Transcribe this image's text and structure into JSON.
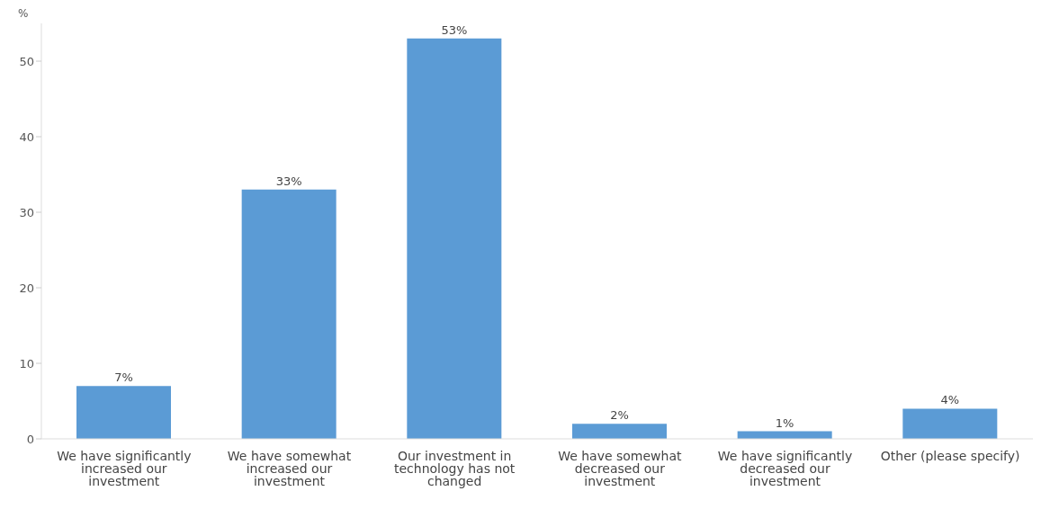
{
  "chart_data": {
    "type": "bar",
    "ylabel": "%",
    "categories": [
      "We have significantly increased our investment",
      "We have somewhat increased our investment",
      "Our investment in technology has not changed",
      "We have somewhat decreased our investment",
      "We have significantly decreased our investment",
      "Other (please specify)"
    ],
    "values": [
      7,
      33,
      53,
      2,
      1,
      4
    ],
    "value_labels": [
      "7%",
      "33%",
      "53%",
      "2%",
      "1%",
      "4%"
    ],
    "color": "#5b9bd5",
    "ylim": [
      0,
      55
    ],
    "yticks": [
      0,
      10,
      20,
      30,
      40,
      50
    ],
    "grid": false
  }
}
